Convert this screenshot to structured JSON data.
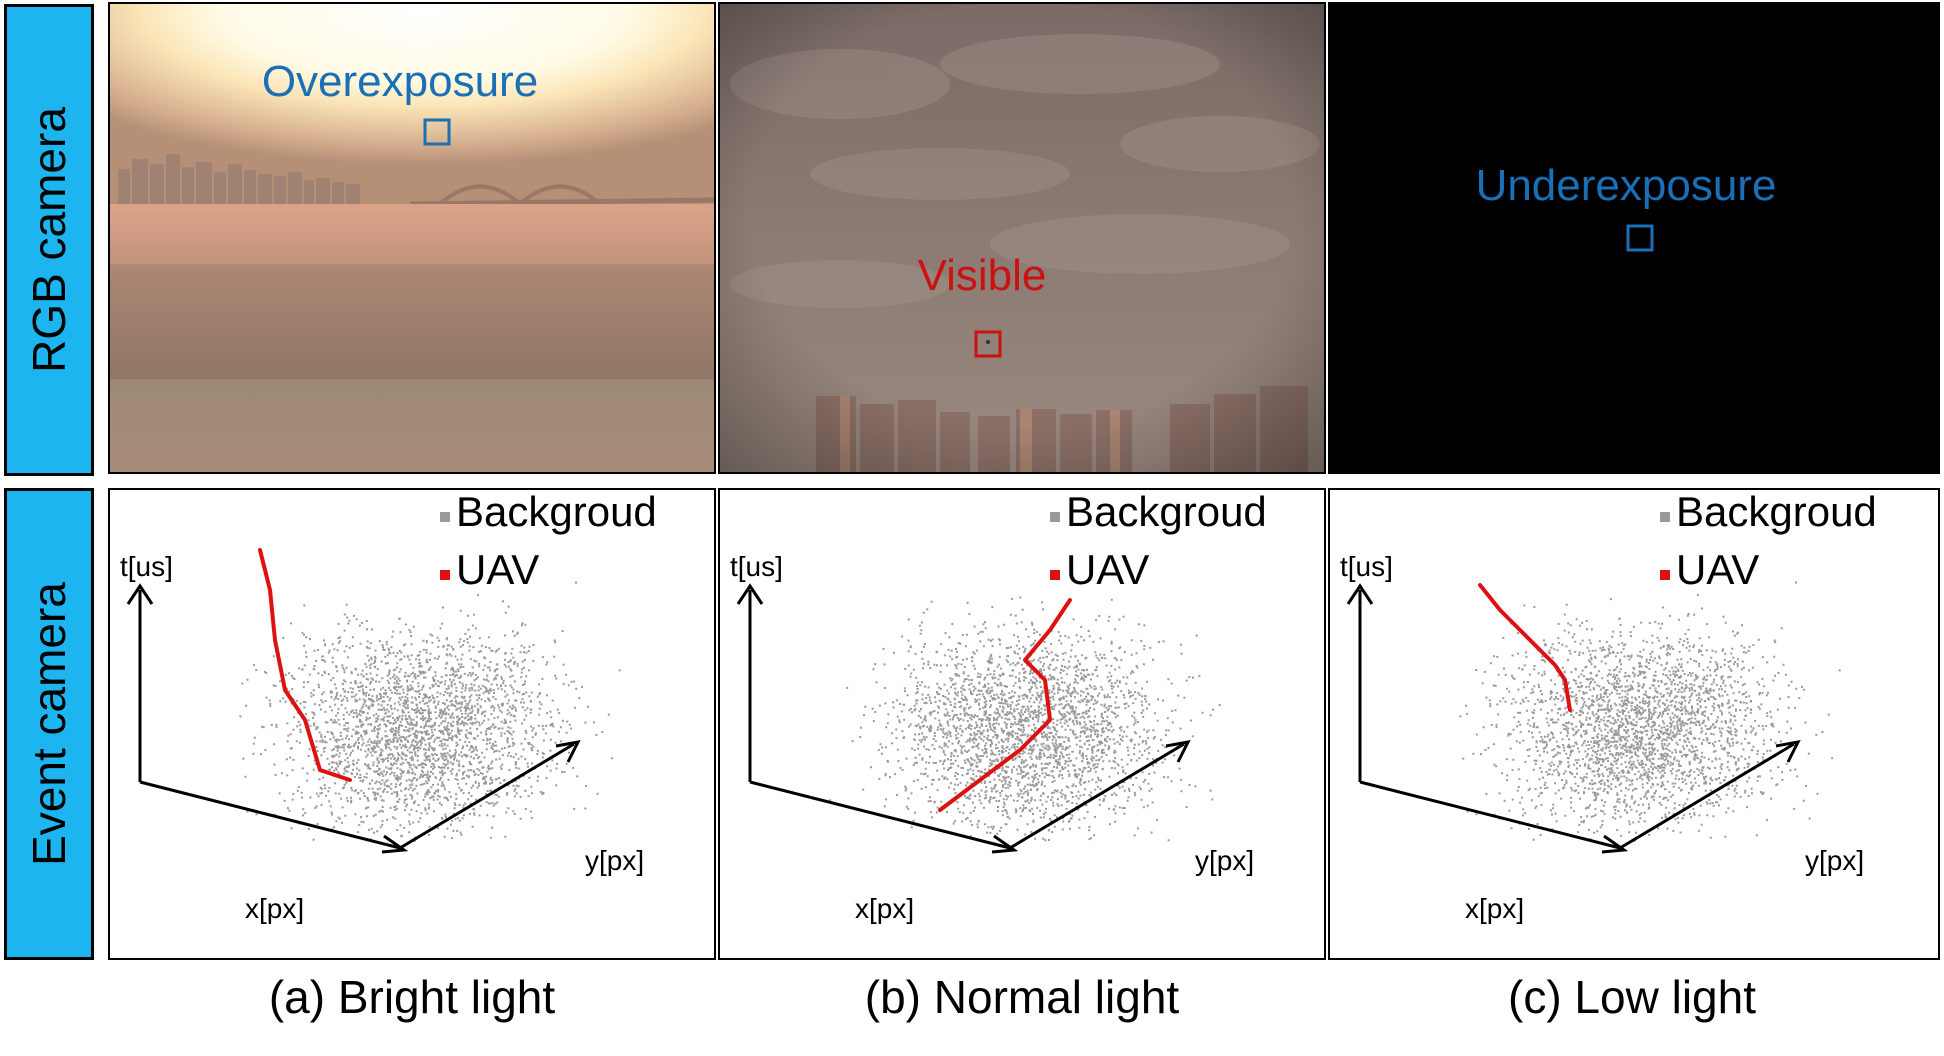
{
  "row_labels": {
    "rgb": "RGB camera",
    "event": "Event camera"
  },
  "rgb_panels": [
    {
      "id": "a",
      "annotation": "Overexposure",
      "annotation_color": "#1a6fb5"
    },
    {
      "id": "b",
      "annotation": "Visible",
      "annotation_color": "#cc1111"
    },
    {
      "id": "c",
      "annotation": "Underexposure",
      "annotation_color": "#1a6fb5"
    }
  ],
  "event_panels": [
    {
      "id": "a",
      "legend": [
        "Backgroud",
        "UAV"
      ],
      "axes": {
        "t": "t[us]",
        "x": "x[px]",
        "y": "y[px]"
      }
    },
    {
      "id": "b",
      "legend": [
        "Backgroud",
        "UAV"
      ],
      "axes": {
        "t": "t[us]",
        "x": "x[px]",
        "y": "y[px]"
      }
    },
    {
      "id": "c",
      "legend": [
        "Backgroud",
        "UAV"
      ],
      "axes": {
        "t": "t[us]",
        "x": "x[px]",
        "y": "y[px]"
      }
    }
  ],
  "captions": [
    "(a) Bright light",
    "(b) Normal light",
    "(c) Low light"
  ],
  "colors": {
    "label_bg": "#1cb5f0",
    "background_events": "#9a9a9a",
    "uav_events": "#dd1111",
    "box_blue": "#1a6fb5",
    "box_red": "#cc1111"
  }
}
